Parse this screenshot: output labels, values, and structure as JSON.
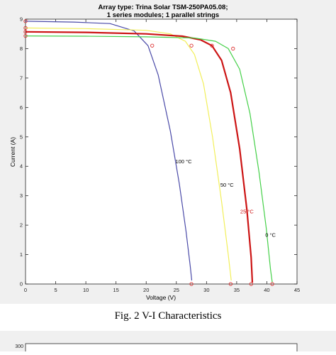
{
  "figure_caption": "Fig. 2 V-I Characteristics",
  "chart_data": [
    {
      "type": "line",
      "title": "Array type: Trina Solar TSM-250PA05.08;",
      "subtitle": "1 series modules; 1 parallel strings",
      "xlabel": "Voltage (V)",
      "ylabel": "Current (A)",
      "xlim": [
        0,
        45
      ],
      "ylim": [
        0,
        9
      ],
      "xticks": [
        0,
        5,
        10,
        15,
        20,
        25,
        30,
        35,
        40,
        45
      ],
      "yticks": [
        0,
        1,
        2,
        3,
        4,
        5,
        6,
        7,
        8,
        9
      ],
      "grid": false,
      "series": [
        {
          "name": "100 °C",
          "color": "#4a4aa8",
          "x": [
            0,
            8,
            14,
            18,
            20.3,
            22,
            24,
            25.5,
            26.6,
            27.3,
            27.55
          ],
          "y": [
            8.93,
            8.9,
            8.85,
            8.6,
            8.1,
            7.1,
            5.2,
            3.4,
            1.8,
            0.6,
            0.12
          ],
          "markers": [
            [
              0,
              8.93
            ],
            [
              21,
              8.1
            ],
            [
              27.5,
              0
            ]
          ],
          "label": "100 °C"
        },
        {
          "name": "50 °C",
          "color": "#f2ef5a",
          "x": [
            0,
            10,
            20,
            24,
            26.5,
            28,
            29.5,
            31,
            32.5,
            33.6,
            34.1
          ],
          "y": [
            8.7,
            8.68,
            8.62,
            8.5,
            8.25,
            7.8,
            6.8,
            5.0,
            2.8,
            1.0,
            0.12
          ],
          "markers": [
            [
              0,
              8.7
            ],
            [
              27.5,
              8.1
            ],
            [
              34,
              0
            ]
          ],
          "label": "50 °C"
        },
        {
          "name": "25 °C",
          "color": "#cc1414",
          "x": [
            0,
            10,
            20,
            26,
            29,
            30.9,
            32.5,
            34,
            35.5,
            36.7,
            37.4,
            37.6
          ],
          "y": [
            8.57,
            8.55,
            8.5,
            8.42,
            8.3,
            8.1,
            7.6,
            6.5,
            4.6,
            2.5,
            0.9,
            0.05
          ],
          "markers": [
            [
              0,
              8.57
            ],
            [
              30.9,
              8.1
            ],
            [
              37.4,
              0
            ]
          ],
          "label": "25 °C"
        },
        {
          "name": "0 °C",
          "color": "#44d048",
          "x": [
            0,
            10,
            20,
            28,
            31.5,
            33.6,
            35.5,
            37.2,
            38.7,
            39.9,
            40.6,
            40.9
          ],
          "y": [
            8.43,
            8.42,
            8.4,
            8.36,
            8.25,
            8.0,
            7.3,
            5.8,
            3.8,
            1.9,
            0.5,
            0.05
          ],
          "markers": [
            [
              0,
              8.43
            ],
            [
              34.4,
              8.0
            ],
            [
              40.9,
              0
            ]
          ],
          "label": "0 °C"
        }
      ],
      "annotations": [
        {
          "text": "100 °C",
          "x": 26.2,
          "y": 4.1,
          "color": "#000000"
        },
        {
          "text": "50 °C",
          "x": 33.4,
          "y": 3.3,
          "color": "#000000"
        },
        {
          "text": "25 °C",
          "x": 36.7,
          "y": 2.4,
          "color": "#cc1414"
        },
        {
          "text": "0 °C",
          "x": 40.6,
          "y": 1.6,
          "color": "#000000"
        }
      ]
    },
    {
      "type": "line",
      "yticks": [
        300
      ],
      "note": "second figure cut off at bottom edge"
    }
  ]
}
